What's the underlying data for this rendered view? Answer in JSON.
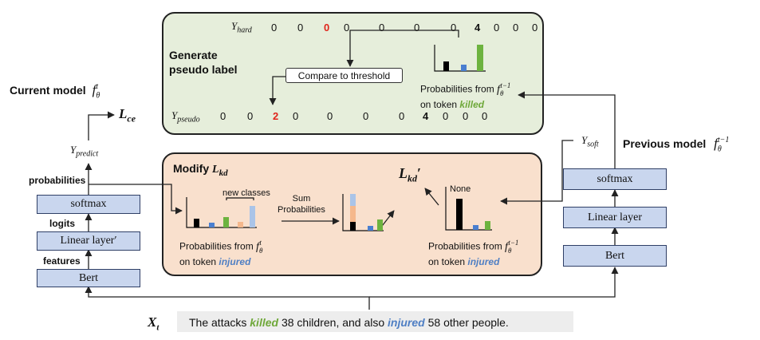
{
  "left_model": {
    "title": "Current model",
    "title_math": "f",
    "title_math_sup": "t",
    "title_math_sub": "θ",
    "bert_label": "Bert",
    "linear_label": "Linear layer′",
    "softmax_label": "softmax",
    "features_label": "features",
    "logits_label": "logits",
    "probabilities_label": "probabilities",
    "y_predict": "Y",
    "y_predict_sub": "predict"
  },
  "right_model": {
    "title": "Previous model",
    "title_math": "f",
    "title_math_sup": "t−1",
    "title_math_sub": "θ",
    "bert_label": "Bert",
    "linear_label": "Linear layer",
    "softmax_label": "softmax",
    "y_soft": "Y",
    "y_soft_sub": "soft"
  },
  "loss_ce": {
    "main": "L",
    "sub": "ce"
  },
  "pseudo_label_panel": {
    "heading_line1": "Generate",
    "heading_line2": "pseudo label",
    "y_hard": "Y",
    "y_hard_sub": "hard",
    "y_hard_values": [
      "0",
      "0",
      "0",
      "0",
      "0",
      "0",
      "0",
      "4",
      "0",
      "0",
      "0"
    ],
    "y_hard_highlight_index": 2,
    "y_hard_bold_index": 7,
    "y_pseudo": "Y",
    "y_pseudo_sub": "pseudo",
    "y_pseudo_values": [
      "0",
      "0",
      "2",
      "0",
      "0",
      "0",
      "0",
      "4",
      "0",
      "0",
      "0"
    ],
    "y_pseudo_highlight_index": 2,
    "y_pseudo_bold_index": 7,
    "threshold_label": "Compare to threshold",
    "prob_caption_line1": "Probabilities from",
    "prob_caption_math": "f",
    "prob_caption_sup": "t−1",
    "prob_caption_sub": "θ",
    "prob_caption_line2_prefix": "on token",
    "prob_caption_token": "killed"
  },
  "kd_panel": {
    "heading": "Modify",
    "heading_math": "L",
    "heading_math_sub": "kd",
    "new_classes_label": "new classes",
    "sum_label_line1": "Sum",
    "sum_label_line2": "Probabilities",
    "lkd_main": "L",
    "lkd_sub": "kd",
    "lkd_prime": "′",
    "none_label": "None",
    "left_caption_line1": "Probabilities from",
    "left_caption_math": "f",
    "left_caption_sup": "t",
    "left_caption_sub": "θ",
    "left_caption_line2_prefix": "on token",
    "left_caption_token": "injured",
    "right_caption_line1": "Probabilities from",
    "right_caption_math": "f",
    "right_caption_sup": "t−1",
    "right_caption_sub": "θ",
    "right_caption_line2_prefix": "on token",
    "right_caption_token": "injured"
  },
  "input": {
    "x_label": "X",
    "x_sub": "t",
    "sentence_part1": "The attacks ",
    "token1": "killed",
    "sentence_part2": " 38 children, and also ",
    "token2": "injured",
    "sentence_part3": " 58 other people."
  },
  "colors": {
    "box_fill": "#c9d6ee",
    "green_panel": "#e6eedb",
    "orange_panel": "#f9e0cd",
    "red_value": "#e0241b",
    "green_token": "#6fa83a",
    "blue_token": "#4f7fc4",
    "bar_black": "#000000",
    "bar_blue": "#4a7fd0",
    "bar_green": "#6db33f",
    "bar_orange": "#f5b88c",
    "bar_lightblue": "#aac4e8"
  }
}
